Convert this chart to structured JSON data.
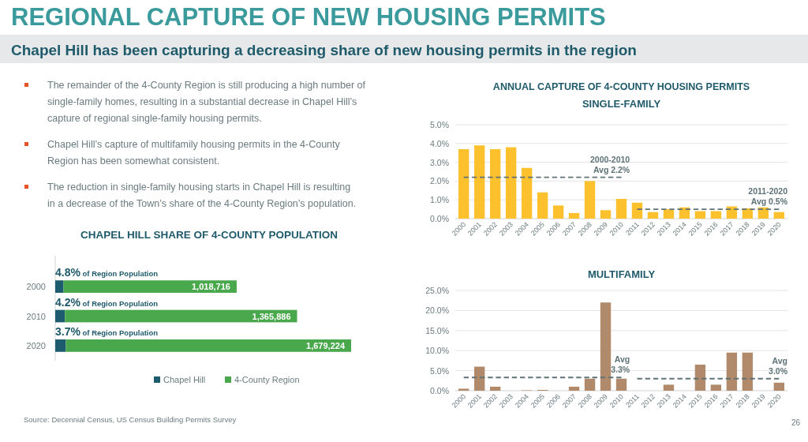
{
  "chart_data": [
    {
      "type": "other",
      "title": "REGIONAL CAPTURE OF NEW HOUSING PERMITS",
      "subtitle": "Chapel Hill has been capturing a decreasing share of new housing permits in the region",
      "annotations": [
        "The remainder of the 4-County Region is still producing a high number of single-family homes, resulting in a substantial decrease in Chapel Hill’s capture of regional single-family housing permits.",
        "Chapel Hill’s capture of multifamily housing permits in the 4-County Region has been somewhat consistent.",
        "The reduction in single-family housing starts in Chapel Hill is resulting in a decrease of the Town’s share of the 4-County Region’s population."
      ]
    },
    {
      "type": "bar",
      "orientation": "horizontal",
      "stacked": true,
      "title": "CHAPEL HILL SHARE OF 4-COUNTY POPULATION",
      "categories": [
        "2000",
        "2010",
        "2020"
      ],
      "tick_labels": "y",
      "legend": "bottom",
      "series": [
        {
          "name": "Chapel Hill",
          "color": "#1d5c6e",
          "values": [
            48900,
            57400,
            62100
          ]
        },
        {
          "name": "4-County Region",
          "color": "#4aa84c",
          "values": [
            1018716,
            1365886,
            1679224
          ],
          "value_labels": [
            "1,018,716",
            "1,365,886",
            "1,679,224"
          ]
        }
      ],
      "annotations": [
        "4.8% of Region Population",
        "4.2% of Region Population",
        "3.7% of Region Population",
        "Source: Decennial Census, US Census Building Permits Survey"
      ]
    },
    {
      "type": "bar",
      "title": "ANNUAL CAPTURE OF 4-COUNTY HOUSING PERMITS",
      "subtitle": "SINGLE-FAMILY",
      "categories": [
        "2000",
        "2001",
        "2002",
        "2003",
        "2004",
        "2005",
        "2006",
        "2007",
        "2008",
        "2009",
        "2010",
        "2011",
        "2012",
        "2013",
        "2014",
        "2015",
        "2016",
        "2017",
        "2018",
        "2019",
        "2020"
      ],
      "ylim": [
        0,
        5
      ],
      "yticks": [
        {
          "value": 0,
          "label": "0.0%"
        },
        {
          "value": 1,
          "label": "1.0%"
        },
        {
          "value": 2,
          "label": "2.0%"
        },
        {
          "value": 3,
          "label": "3.0%"
        },
        {
          "value": 4,
          "label": "4.0%"
        },
        {
          "value": 5,
          "label": "5.0%"
        }
      ],
      "grid": "y",
      "series": [
        {
          "color": "#fdc12e",
          "values": [
            3.7,
            3.9,
            3.7,
            3.8,
            2.7,
            1.4,
            0.7,
            0.3,
            2.0,
            0.45,
            1.05,
            0.85,
            0.35,
            0.5,
            0.6,
            0.4,
            0.4,
            0.65,
            0.55,
            0.6,
            0.35
          ]
        },
        {
          "type": "line",
          "line_style": "dashed",
          "color": "#5f7377",
          "values": [
            2.2,
            2.2,
            2.2,
            2.2,
            2.2,
            2.2,
            2.2,
            2.2,
            2.2,
            2.2,
            2.2,
            null,
            null,
            null,
            null,
            null,
            null,
            null,
            null,
            null,
            null
          ]
        },
        {
          "type": "line",
          "line_style": "dashed",
          "color": "#5f7377",
          "values": [
            null,
            null,
            null,
            null,
            null,
            null,
            null,
            null,
            null,
            null,
            null,
            0.5,
            0.5,
            0.5,
            0.5,
            0.5,
            0.5,
            0.5,
            0.5,
            0.5,
            0.5
          ]
        }
      ],
      "annotations": [
        {
          "text": "2000-2010\nAvg 2.2%",
          "x": "2010",
          "y": 2.2
        },
        {
          "text": "2011-2020\nAvg 0.5%",
          "x": "2020",
          "y": 0.5
        }
      ]
    },
    {
      "type": "bar",
      "title": "MULTIFAMILY",
      "categories": [
        "2000",
        "2001",
        "2002",
        "2003",
        "2004",
        "2005",
        "2006",
        "2007",
        "2008",
        "2009",
        "2010",
        "2011",
        "2012",
        "2013",
        "2014",
        "2015",
        "2016",
        "2017",
        "2018",
        "2019",
        "2020"
      ],
      "ylim": [
        0,
        25
      ],
      "yticks": [
        {
          "value": 0,
          "label": "0.0%"
        },
        {
          "value": 5,
          "label": "5.0%"
        },
        {
          "value": 10,
          "label": "10.0%"
        },
        {
          "value": 15,
          "label": "15.0%"
        },
        {
          "value": 20,
          "label": "20.0%"
        },
        {
          "value": 25,
          "label": "25.0%"
        }
      ],
      "grid": "y",
      "series": [
        {
          "color": "#b08a6a",
          "values": [
            0.5,
            6,
            1,
            0,
            0.1,
            0.2,
            0,
            1,
            3,
            22,
            3,
            0,
            0,
            1.5,
            0,
            6.5,
            1.5,
            9.5,
            9.5,
            0,
            2
          ]
        },
        {
          "type": "line",
          "line_style": "dashed",
          "color": "#5f7377",
          "values": [
            3.3,
            3.3,
            3.3,
            3.3,
            3.3,
            3.3,
            3.3,
            3.3,
            3.3,
            3.3,
            3.3,
            null,
            null,
            null,
            null,
            null,
            null,
            null,
            null,
            null,
            null
          ]
        },
        {
          "type": "line",
          "line_style": "dashed",
          "color": "#5f7377",
          "values": [
            null,
            null,
            null,
            null,
            null,
            null,
            null,
            null,
            null,
            null,
            null,
            3.0,
            3.0,
            3.0,
            3.0,
            3.0,
            3.0,
            3.0,
            3.0,
            3.0,
            3.0
          ]
        }
      ],
      "annotations": [
        {
          "text": "Avg\n3.3%",
          "x": "2010",
          "y": 3.3
        },
        {
          "text": "Avg\n3.0%",
          "x": "2020",
          "y": 3.0
        },
        "26"
      ]
    }
  ]
}
